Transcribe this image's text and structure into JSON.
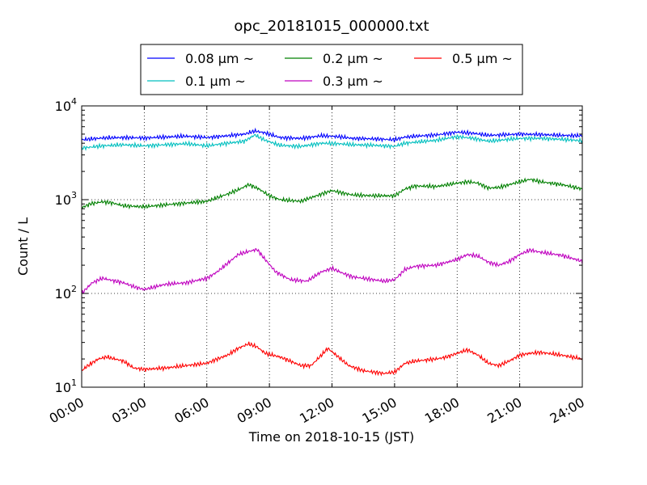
{
  "chart_data": {
    "type": "line",
    "title": "opc_20181015_000000.txt",
    "xlabel": "Time on 2018-10-15 (JST)",
    "ylabel": "Count / L",
    "x_unit": "hours",
    "xlim": [
      0,
      24
    ],
    "ylim": [
      10,
      10000
    ],
    "yscale": "log",
    "grid": true,
    "legend_placement": "top-center",
    "x_ticks": [
      {
        "value": 0,
        "label": "00:00"
      },
      {
        "value": 3,
        "label": "03:00"
      },
      {
        "value": 6,
        "label": "06:00"
      },
      {
        "value": 9,
        "label": "09:00"
      },
      {
        "value": 12,
        "label": "12:00"
      },
      {
        "value": 15,
        "label": "15:00"
      },
      {
        "value": 18,
        "label": "18:00"
      },
      {
        "value": 21,
        "label": "21:00"
      },
      {
        "value": 24,
        "label": "24:00"
      }
    ],
    "y_ticks": [
      {
        "value": 10,
        "base": "10",
        "exp": "1"
      },
      {
        "value": 100,
        "base": "10",
        "exp": "2"
      },
      {
        "value": 1000,
        "base": "10",
        "exp": "3"
      },
      {
        "value": 10000,
        "base": "10",
        "exp": "4"
      }
    ],
    "series": [
      {
        "name": "0.08 μm ~",
        "color": "#0000ff",
        "points": [
          [
            0,
            4350
          ],
          [
            1,
            4550
          ],
          [
            2,
            4600
          ],
          [
            3,
            4550
          ],
          [
            4,
            4650
          ],
          [
            5,
            4750
          ],
          [
            6,
            4600
          ],
          [
            7,
            4800
          ],
          [
            7.8,
            5000
          ],
          [
            8.3,
            5400
          ],
          [
            8.8,
            5150
          ],
          [
            9.5,
            4600
          ],
          [
            10.5,
            4500
          ],
          [
            11.5,
            4800
          ],
          [
            12.3,
            4700
          ],
          [
            13,
            4500
          ],
          [
            14,
            4450
          ],
          [
            15,
            4350
          ],
          [
            15.5,
            4650
          ],
          [
            16,
            4750
          ],
          [
            17,
            4900
          ],
          [
            18,
            5250
          ],
          [
            18.8,
            5100
          ],
          [
            19.5,
            4850
          ],
          [
            20,
            4900
          ],
          [
            21,
            5000
          ],
          [
            22,
            4950
          ],
          [
            23,
            4850
          ],
          [
            24,
            4800
          ]
        ]
      },
      {
        "name": "0.1 μm ~",
        "color": "#00bfbf",
        "points": [
          [
            0,
            3550
          ],
          [
            1,
            3750
          ],
          [
            2,
            3850
          ],
          [
            3,
            3750
          ],
          [
            4,
            3850
          ],
          [
            5,
            3950
          ],
          [
            6,
            3750
          ],
          [
            7,
            4000
          ],
          [
            7.8,
            4200
          ],
          [
            8.3,
            4900
          ],
          [
            8.8,
            4300
          ],
          [
            9.5,
            3800
          ],
          [
            10.5,
            3700
          ],
          [
            11.5,
            4000
          ],
          [
            12.3,
            3950
          ],
          [
            13,
            3850
          ],
          [
            14,
            3800
          ],
          [
            15,
            3700
          ],
          [
            15.5,
            4000
          ],
          [
            16,
            4100
          ],
          [
            17,
            4300
          ],
          [
            18,
            4700
          ],
          [
            18.8,
            4500
          ],
          [
            19.5,
            4200
          ],
          [
            20,
            4300
          ],
          [
            21,
            4500
          ],
          [
            22,
            4500
          ],
          [
            23,
            4400
          ],
          [
            24,
            4250
          ]
        ]
      },
      {
        "name": "0.2 μm ~",
        "color": "#008000",
        "points": [
          [
            0,
            820
          ],
          [
            0.4,
            900
          ],
          [
            1,
            950
          ],
          [
            1.5,
            920
          ],
          [
            2,
            860
          ],
          [
            3,
            840
          ],
          [
            4,
            880
          ],
          [
            5,
            920
          ],
          [
            6,
            960
          ],
          [
            6.5,
            1050
          ],
          [
            7,
            1150
          ],
          [
            7.6,
            1300
          ],
          [
            8,
            1450
          ],
          [
            8.5,
            1300
          ],
          [
            9,
            1100
          ],
          [
            9.5,
            1000
          ],
          [
            10.5,
            960
          ],
          [
            11,
            1050
          ],
          [
            11.5,
            1150
          ],
          [
            12,
            1250
          ],
          [
            12.5,
            1180
          ],
          [
            13,
            1120
          ],
          [
            14,
            1100
          ],
          [
            15,
            1100
          ],
          [
            15.5,
            1300
          ],
          [
            16,
            1400
          ],
          [
            17,
            1380
          ],
          [
            18,
            1500
          ],
          [
            18.5,
            1550
          ],
          [
            19,
            1500
          ],
          [
            19.5,
            1330
          ],
          [
            20,
            1350
          ],
          [
            21,
            1550
          ],
          [
            21.5,
            1650
          ],
          [
            22,
            1550
          ],
          [
            23,
            1450
          ],
          [
            24,
            1300
          ]
        ]
      },
      {
        "name": "0.3 μm ~",
        "color": "#bf00bf",
        "points": [
          [
            0,
            100
          ],
          [
            0.5,
            130
          ],
          [
            1,
            145
          ],
          [
            2,
            130
          ],
          [
            2.5,
            118
          ],
          [
            3,
            110
          ],
          [
            4,
            125
          ],
          [
            5,
            130
          ],
          [
            6,
            145
          ],
          [
            6.5,
            170
          ],
          [
            7,
            210
          ],
          [
            7.5,
            260
          ],
          [
            8,
            280
          ],
          [
            8.4,
            295
          ],
          [
            8.8,
            230
          ],
          [
            9.3,
            170
          ],
          [
            10,
            140
          ],
          [
            10.8,
            135
          ],
          [
            11.5,
            170
          ],
          [
            12,
            185
          ],
          [
            12.5,
            165
          ],
          [
            13,
            150
          ],
          [
            14,
            140
          ],
          [
            14.5,
            135
          ],
          [
            15,
            140
          ],
          [
            15.5,
            180
          ],
          [
            16,
            195
          ],
          [
            17,
            200
          ],
          [
            18,
            230
          ],
          [
            18.5,
            260
          ],
          [
            19,
            250
          ],
          [
            19.5,
            215
          ],
          [
            20,
            200
          ],
          [
            20.5,
            220
          ],
          [
            21,
            260
          ],
          [
            21.5,
            290
          ],
          [
            22,
            275
          ],
          [
            23,
            255
          ],
          [
            24,
            220
          ]
        ]
      },
      {
        "name": "0.5 μm ~",
        "color": "#ff0000",
        "points": [
          [
            0,
            15
          ],
          [
            0.3,
            17
          ],
          [
            0.8,
            20
          ],
          [
            1.2,
            21
          ],
          [
            2,
            19
          ],
          [
            2.5,
            16
          ],
          [
            3,
            15.5
          ],
          [
            4,
            16
          ],
          [
            5,
            17
          ],
          [
            6,
            18
          ],
          [
            6.5,
            20
          ],
          [
            7,
            22
          ],
          [
            7.5,
            26
          ],
          [
            8,
            29
          ],
          [
            8.4,
            27
          ],
          [
            8.8,
            23
          ],
          [
            9.5,
            21
          ],
          [
            10,
            19
          ],
          [
            10.5,
            17
          ],
          [
            11,
            17
          ],
          [
            11.5,
            22
          ],
          [
            11.8,
            26
          ],
          [
            12.2,
            22
          ],
          [
            12.8,
            17
          ],
          [
            13.5,
            15
          ],
          [
            14.5,
            14
          ],
          [
            15,
            14.5
          ],
          [
            15.5,
            18
          ],
          [
            16,
            19
          ],
          [
            17,
            20
          ],
          [
            17.5,
            21
          ],
          [
            18,
            23
          ],
          [
            18.5,
            25
          ],
          [
            19,
            22
          ],
          [
            19.5,
            18
          ],
          [
            20,
            17
          ],
          [
            20.5,
            19
          ],
          [
            21,
            22
          ],
          [
            21.5,
            23
          ],
          [
            22,
            23.5
          ],
          [
            23,
            22
          ],
          [
            24,
            20
          ]
        ]
      }
    ]
  }
}
